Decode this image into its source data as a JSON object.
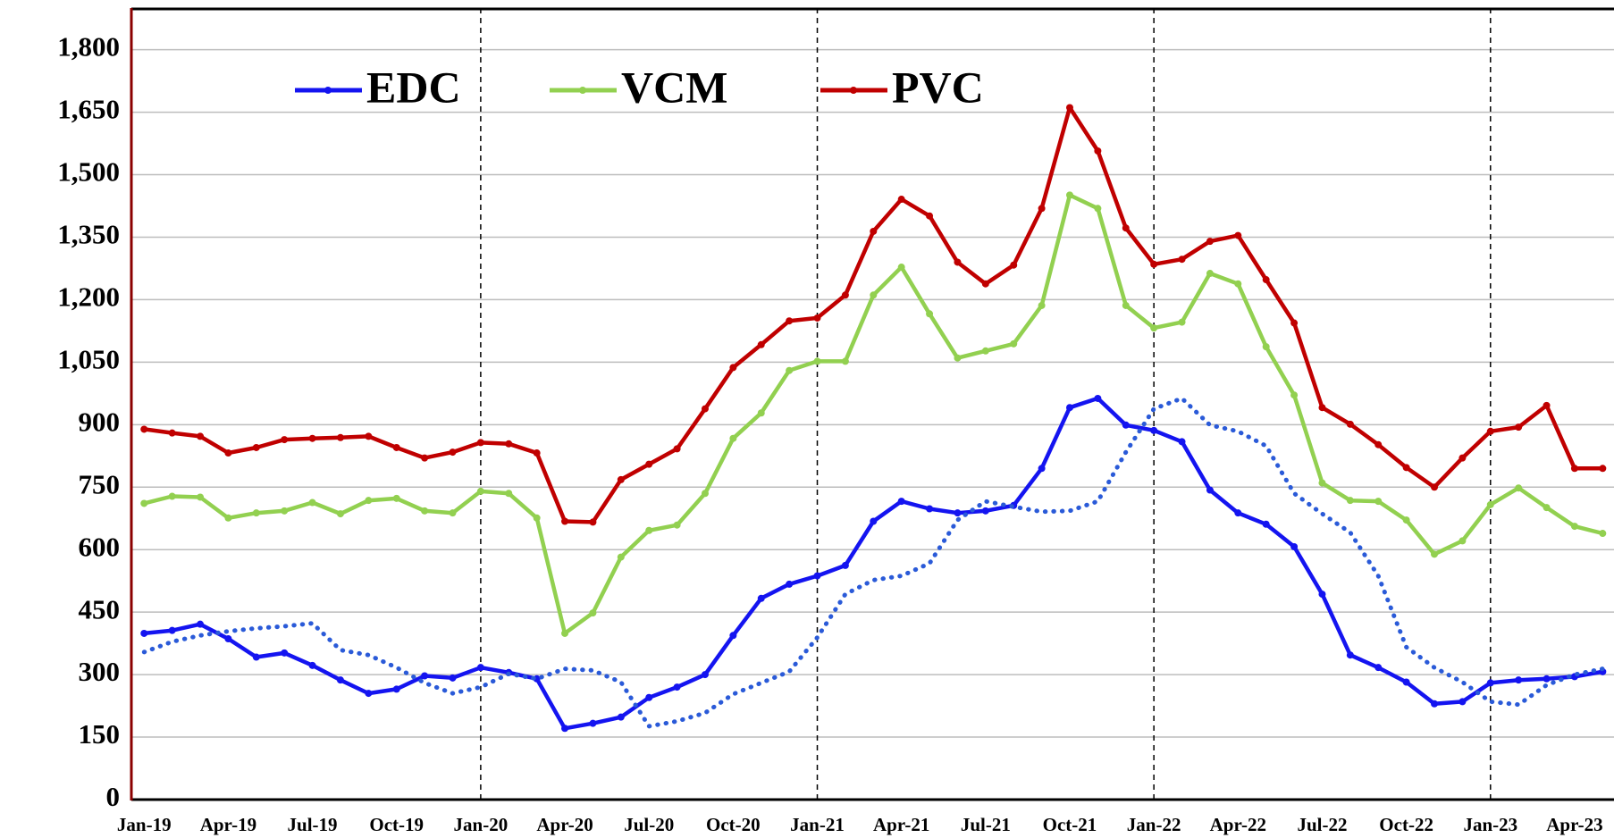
{
  "chart_data": {
    "type": "line",
    "categories": [
      "Jan-19",
      null,
      null,
      "Apr-19",
      null,
      null,
      "Jul-19",
      null,
      null,
      "Oct-19",
      null,
      null,
      "Jan-20",
      null,
      null,
      "Apr-20",
      null,
      null,
      "Jul-20",
      null,
      null,
      "Oct-20",
      null,
      null,
      "Jan-21",
      null,
      null,
      "Apr-21",
      null,
      null,
      "Jul-21",
      null,
      null,
      "Oct-21",
      null,
      null,
      "Jan-22",
      null,
      null,
      "Apr-22",
      null,
      null,
      "Jul-22",
      null,
      null,
      "Oct-22",
      null,
      null,
      "Jan-23",
      null,
      null,
      "Apr-23",
      null
    ],
    "series": [
      {
        "name": "EDC",
        "color": "#1414f0",
        "markers": true,
        "values": [
          399,
          406,
          421,
          386,
          342,
          352,
          322,
          287,
          255,
          265,
          297,
          292,
          317,
          305,
          290,
          171,
          183,
          198,
          245,
          270,
          300,
          394,
          483,
          517,
          537,
          562,
          668,
          716,
          698,
          688,
          693,
          706,
          795,
          941,
          963,
          899,
          886,
          859,
          743,
          688,
          661,
          607,
          493,
          347,
          317,
          282,
          230,
          235,
          280,
          287,
          290,
          295,
          307
        ]
      },
      {
        "name": "VCM",
        "color": "#92d050",
        "markers": true,
        "values": [
          711,
          728,
          726,
          676,
          688,
          693,
          713,
          686,
          718,
          723,
          693,
          688,
          740,
          735,
          676,
          399,
          448,
          582,
          646,
          659,
          735,
          867,
          928,
          1030,
          1052,
          1052,
          1211,
          1278,
          1166,
          1060,
          1077,
          1094,
          1186,
          1451,
          1419,
          1186,
          1132,
          1146,
          1263,
          1238,
          1087,
          971,
          760,
          718,
          716,
          671,
          589,
          621,
          708,
          748,
          701,
          656,
          639
        ]
      },
      {
        "name": "PVC",
        "color": "#c00000",
        "markers": true,
        "values": [
          889,
          880,
          872,
          832,
          845,
          864,
          867,
          869,
          872,
          845,
          820,
          834,
          857,
          854,
          832,
          668,
          666,
          768,
          805,
          842,
          938,
          1037,
          1092,
          1149,
          1156,
          1211,
          1364,
          1441,
          1401,
          1290,
          1238,
          1283,
          1419,
          1661,
          1557,
          1372,
          1285,
          1297,
          1340,
          1354,
          1248,
          1144,
          941,
          901,
          852,
          797,
          750,
          820,
          884,
          894,
          946,
          795,
          795
        ]
      },
      {
        "color": "#2a5ad8",
        "dotted": true,
        "values": [
          354,
          379,
          394,
          404,
          411,
          416,
          423,
          359,
          347,
          317,
          280,
          255,
          270,
          302,
          290,
          314,
          310,
          282,
          176,
          188,
          208,
          253,
          280,
          307,
          389,
          493,
          527,
          537,
          567,
          671,
          716,
          703,
          691,
          693,
          716,
          834,
          938,
          963,
          899,
          884,
          849,
          735,
          686,
          641,
          537,
          366,
          317,
          282,
          235,
          228,
          275,
          300,
          314
        ]
      }
    ],
    "ylim": [
      0,
      1900
    ],
    "yticks": [
      0,
      150,
      300,
      450,
      600,
      750,
      900,
      {
        "value": 1050,
        "label": "1,050"
      },
      {
        "value": 1200,
        "label": "1,200"
      },
      {
        "value": 1350,
        "label": "1,350"
      },
      {
        "value": 1500,
        "label": "1,500"
      },
      {
        "value": 1650,
        "label": "1,650"
      },
      {
        "value": 1800,
        "label": "1,800"
      }
    ],
    "grid": true,
    "legend": "top"
  }
}
